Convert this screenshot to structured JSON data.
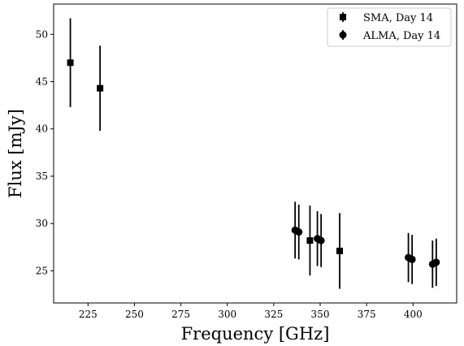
{
  "chart_data": {
    "type": "scatter",
    "xlabel": "Frequency [GHz]",
    "ylabel": "Flux [mJy]",
    "xlim": [
      206.5,
      423.5
    ],
    "ylim": [
      21.6,
      53.2
    ],
    "xticks": [
      225,
      250,
      275,
      300,
      325,
      350,
      375,
      400
    ],
    "yticks": [
      25,
      30,
      35,
      40,
      45,
      50
    ],
    "grid": false,
    "legend_position": "top-right",
    "series": [
      {
        "name": "SMA, Day 14",
        "marker": "square",
        "color": "#000000",
        "points": [
          {
            "x": 215.5,
            "y": 47.0,
            "err": 4.7
          },
          {
            "x": 231.5,
            "y": 44.3,
            "err": 4.5
          },
          {
            "x": 344.5,
            "y": 28.2,
            "err": 3.7
          },
          {
            "x": 360.5,
            "y": 27.1,
            "err": 4.0
          }
        ]
      },
      {
        "name": "ALMA, Day 14",
        "marker": "circle",
        "color": "#000000",
        "points": [
          {
            "x": 336.5,
            "y": 29.3,
            "err": 3.0
          },
          {
            "x": 338.5,
            "y": 29.1,
            "err": 2.9
          },
          {
            "x": 348.5,
            "y": 28.4,
            "err": 2.9
          },
          {
            "x": 350.5,
            "y": 28.2,
            "err": 2.8
          },
          {
            "x": 397.5,
            "y": 26.4,
            "err": 2.6
          },
          {
            "x": 399.5,
            "y": 26.2,
            "err": 2.6
          },
          {
            "x": 410.5,
            "y": 25.7,
            "err": 2.5
          },
          {
            "x": 412.5,
            "y": 25.9,
            "err": 2.5
          }
        ]
      }
    ]
  }
}
